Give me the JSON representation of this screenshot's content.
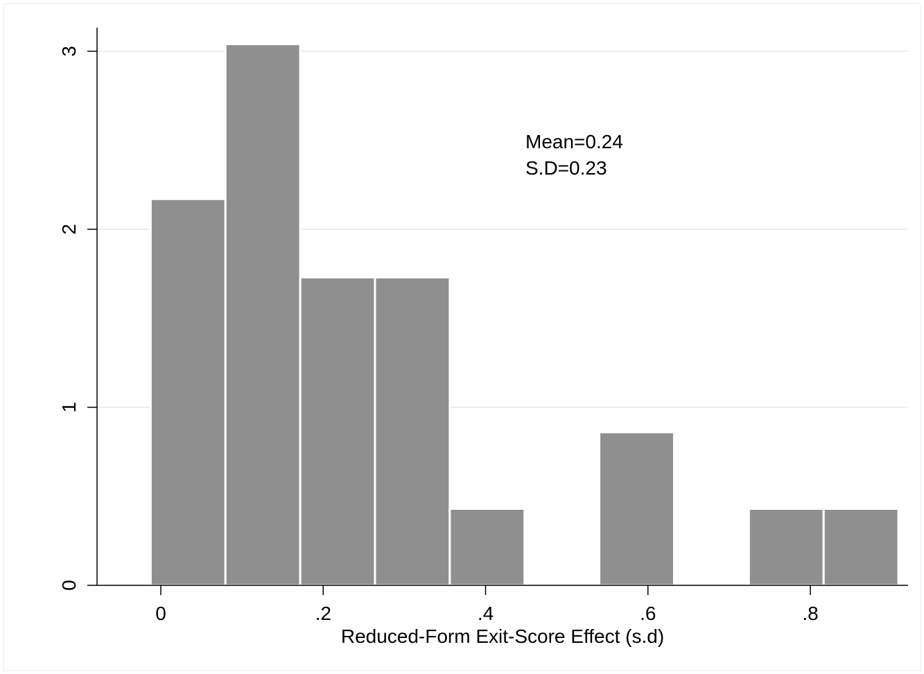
{
  "chart_data": {
    "type": "bar",
    "histogram": true,
    "bins": [
      {
        "x0": -0.0125,
        "x1": 0.0796,
        "y": 2.17
      },
      {
        "x0": 0.0796,
        "x1": 0.1717,
        "y": 3.04
      },
      {
        "x0": 0.1717,
        "x1": 0.2638,
        "y": 1.73
      },
      {
        "x0": 0.2638,
        "x1": 0.3559,
        "y": 1.73
      },
      {
        "x0": 0.3559,
        "x1": 0.448,
        "y": 0.43
      },
      {
        "x0": 0.448,
        "x1": 0.5401,
        "y": 0
      },
      {
        "x0": 0.5401,
        "x1": 0.6322,
        "y": 0.86
      },
      {
        "x0": 0.6322,
        "x1": 0.7243,
        "y": 0
      },
      {
        "x0": 0.7243,
        "x1": 0.8164,
        "y": 0.43
      },
      {
        "x0": 0.8164,
        "x1": 0.9085,
        "y": 0.43
      }
    ],
    "xlim": [
      -0.075,
      0.925
    ],
    "ylim": [
      0,
      3.125
    ],
    "xticks": [
      0,
      0.2,
      0.4,
      0.6,
      0.8
    ],
    "xtick_labels": [
      "0",
      ".2",
      ".4",
      ".6",
      ".8"
    ],
    "yticks": [
      0,
      1,
      2,
      3
    ],
    "ytick_labels": [
      "0",
      "1",
      "2",
      "3"
    ],
    "xlabel": "Reduced-Form Exit-Score Effect (s.d)",
    "ylabel": "",
    "grid": true,
    "annotations": [
      "Mean=0.24",
      "S.D=0.23"
    ],
    "colors": {
      "bar_fill": "#8f8f8f",
      "bar_edge": "#ffffff",
      "grid": "#e6e6e6",
      "axis": "#000000"
    }
  }
}
